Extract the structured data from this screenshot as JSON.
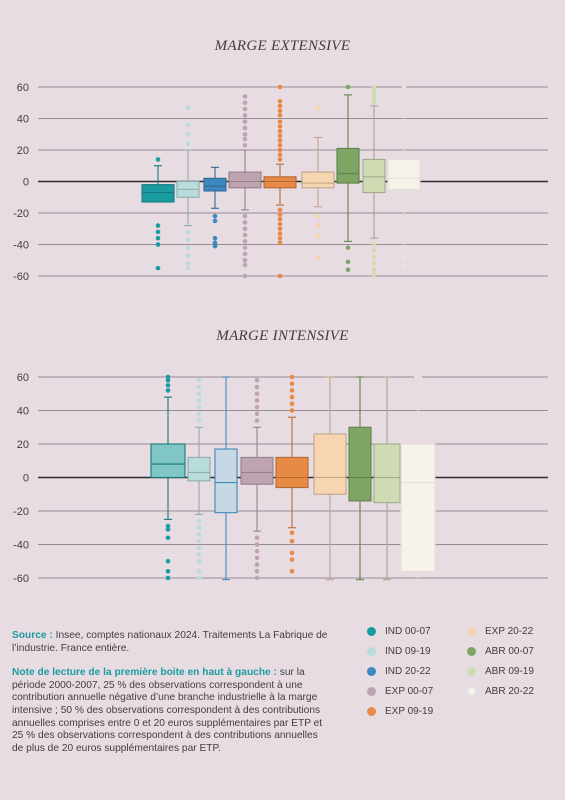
{
  "footer": {
    "source_label": "Source :",
    "source_text": "Insee, comptes nationaux 2024. Traitements La Fabrique de l’industrie. France entière.",
    "note_label": "Note de lecture de la première boite en haut à gauche :",
    "note_text": "sur la période 2000-2007, 25 % des observations correspondent à une contribution annuelle négative d’une branche industrielle à la marge intensive ; 50 % des observations correspondent à des contributions annuelles comprises entre 0 et 20 euros supplémentaires par ETP et 25 % des observations correspondent à des contributions annuelles de plus de 20 euros supplémentaires par ETP."
  },
  "legend": [
    {
      "label": "IND 00-07",
      "color": "#1a9ca0"
    },
    {
      "label": "IND 09-19",
      "color": "#b8dcdb"
    },
    {
      "label": "IND 20-22",
      "color": "#3d88bd"
    },
    {
      "label": "EXP 00-07",
      "color": "#bea4b0"
    },
    {
      "label": "EXP 09-19",
      "color": "#e68a45"
    },
    {
      "label": "EXP 20-22",
      "color": "#f6d5b0"
    },
    {
      "label": "ABR 00-07",
      "color": "#7ea563"
    },
    {
      "label": "ABR 09-19",
      "color": "#cfdbb3"
    },
    {
      "label": "ABR 20-22",
      "color": "#f6f3ea"
    }
  ],
  "chart_data": [
    {
      "type": "box",
      "title": "MARGE EXTENSIVE",
      "ylim": [
        -65,
        65
      ],
      "yticks": [
        60,
        40,
        20,
        0,
        -20,
        -40,
        -60
      ],
      "grid": true,
      "boxes": [
        {
          "name": "IND 00-07",
          "whisker_low": -13,
          "q1": -13,
          "median": -7,
          "q3": -2,
          "whisker_high": 10,
          "outliers": [
            14,
            -28,
            -32,
            -36,
            -40,
            -55
          ]
        },
        {
          "name": "IND 09-19",
          "whisker_low": -28,
          "q1": -10,
          "median": -5,
          "q3": 0,
          "whisker_high": 20,
          "outliers": [
            24,
            30,
            36,
            47,
            -32,
            -37,
            -42,
            -47,
            -52,
            -55
          ]
        },
        {
          "name": "IND 20-22",
          "whisker_low": -17,
          "q1": -6,
          "median": -3,
          "q3": 2,
          "whisker_high": 9,
          "outliers": [
            -22,
            -25,
            -36,
            -39,
            -41
          ]
        },
        {
          "name": "EXP 00-07",
          "whisker_low": -18,
          "q1": -4,
          "median": 0,
          "q3": 6,
          "whisker_high": 20,
          "outliers": [
            23,
            27,
            30,
            34,
            38,
            42,
            46,
            50,
            54,
            -22,
            -26,
            -30,
            -34,
            -38,
            -42,
            -46,
            -50,
            -53,
            -60
          ]
        },
        {
          "name": "EXP 09-19",
          "whisker_low": -15,
          "q1": -4,
          "median": 0,
          "q3": 3,
          "whisker_high": 11,
          "outliers": [
            14,
            17,
            20,
            23,
            26,
            29,
            32,
            35,
            38,
            42,
            45,
            48,
            51,
            60,
            -18,
            -21,
            -24,
            -27,
            -30,
            -33,
            -36,
            -39,
            -60
          ]
        },
        {
          "name": "EXP 20-22",
          "whisker_low": -16,
          "q1": -4,
          "median": -1,
          "q3": 6,
          "whisker_high": 28,
          "outliers": [
            47,
            -22,
            -28,
            -35,
            -48
          ]
        },
        {
          "name": "ABR 00-07",
          "whisker_low": -38,
          "q1": -1,
          "median": 5,
          "q3": 21,
          "whisker_high": 55,
          "outliers": [
            60,
            -42,
            -51,
            -56
          ]
        },
        {
          "name": "ABR 09-19",
          "whisker_low": -36,
          "q1": -7,
          "median": 3,
          "q3": 14,
          "whisker_high": 48,
          "outliers": [
            50,
            52,
            54,
            56,
            58,
            60,
            -40,
            -44,
            -48,
            -52,
            -56,
            -59
          ]
        },
        {
          "name": "ABR 20-22",
          "whisker_low": -42,
          "q1": -5,
          "median": 2,
          "q3": 14,
          "whisker_high": 46,
          "outliers": [
            60,
            -48,
            -54
          ]
        }
      ]
    },
    {
      "type": "box",
      "title": "MARGE INTENSIVE",
      "ylim": [
        -65,
        65
      ],
      "yticks": [
        60,
        40,
        20,
        0,
        -20,
        -40,
        -60
      ],
      "grid": true,
      "boxes": [
        {
          "name": "IND 00-07",
          "whisker_low": -25,
          "q1": 0,
          "median": 8,
          "q3": 20,
          "whisker_high": 48,
          "outliers": [
            52,
            55,
            58,
            60,
            -29,
            -31,
            -36,
            -50,
            -56,
            -60
          ]
        },
        {
          "name": "IND 09-19",
          "whisker_low": -22,
          "q1": -2,
          "median": 3,
          "q3": 12,
          "whisker_high": 30,
          "outliers": [
            34,
            38,
            42,
            46,
            50,
            54,
            58,
            -26,
            -30,
            -34,
            -38,
            -42,
            -46,
            -50,
            -56,
            -60
          ]
        },
        {
          "name": "IND 20-22",
          "whisker_low": -61,
          "q1": -21,
          "median": -3,
          "q3": 17,
          "whisker_high": 60,
          "outliers": []
        },
        {
          "name": "EXP 00-07",
          "whisker_low": -32,
          "q1": -4,
          "median": 3,
          "q3": 12,
          "whisker_high": 30,
          "outliers": [
            34,
            38,
            42,
            46,
            50,
            54,
            58,
            -36,
            -40,
            -44,
            -48,
            -52,
            -56,
            -60
          ]
        },
        {
          "name": "EXP 09-19",
          "whisker_low": -30,
          "q1": -6,
          "median": 0,
          "q3": 12,
          "whisker_high": 36,
          "outliers": [
            40,
            44,
            48,
            52,
            56,
            60,
            -33,
            -38,
            -45,
            -49,
            -56
          ]
        },
        {
          "name": "EXP 20-22",
          "whisker_low": -61,
          "q1": -10,
          "median": 0,
          "q3": 26,
          "whisker_high": 60,
          "outliers": []
        },
        {
          "name": "ABR 00-07",
          "whisker_low": -61,
          "q1": -14,
          "median": 0,
          "q3": 30,
          "whisker_high": 60,
          "outliers": []
        },
        {
          "name": "ABR 09-19",
          "whisker_low": -61,
          "q1": -15,
          "median": 0,
          "q3": 20,
          "whisker_high": 60,
          "outliers": []
        },
        {
          "name": "ABR 20-22",
          "whisker_low": -61,
          "q1": -56,
          "median": -3,
          "q3": 20,
          "whisker_high": 60,
          "outliers": []
        }
      ]
    }
  ]
}
